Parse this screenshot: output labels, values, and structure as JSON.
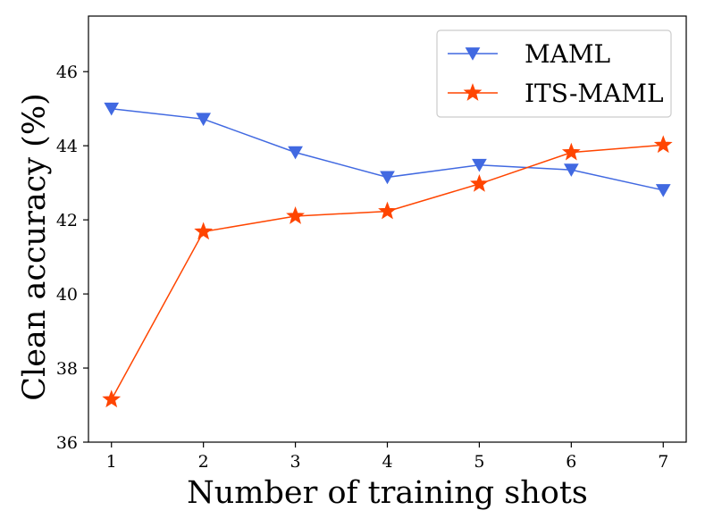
{
  "chart_data": {
    "type": "line",
    "title": "",
    "xlabel": "Number of training shots",
    "ylabel": "Clean accuracy (%)",
    "x": [
      1,
      2,
      3,
      4,
      5,
      6,
      7
    ],
    "xlim": [
      0.75,
      7.25
    ],
    "ylim": [
      36,
      47.5
    ],
    "xticks": [
      "1",
      "2",
      "3",
      "4",
      "5",
      "6",
      "7"
    ],
    "yticks": [
      "36",
      "38",
      "40",
      "42",
      "44",
      "46"
    ],
    "grid": false,
    "legend_position": "top-right",
    "series": [
      {
        "name": "MAML",
        "color": "#4169e1",
        "marker": "triangle-down",
        "values": [
          45.0,
          44.72,
          43.82,
          43.15,
          43.48,
          43.35,
          42.8
        ]
      },
      {
        "name": "ITS-MAML",
        "color": "#ff4500",
        "marker": "star",
        "values": [
          37.15,
          41.68,
          42.1,
          42.23,
          42.97,
          43.82,
          44.02
        ]
      }
    ]
  }
}
